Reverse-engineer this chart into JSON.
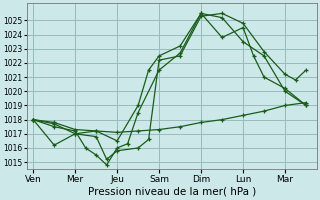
{
  "background_color": "#cce8e8",
  "grid_color": "#99bbbb",
  "line_color": "#1a5c1a",
  "ylim": [
    1014.5,
    1026.2
  ],
  "xlabel": "Pression niveau de la mer( hPa )",
  "yticks": [
    1015,
    1016,
    1017,
    1018,
    1019,
    1020,
    1021,
    1022,
    1023,
    1024,
    1025
  ],
  "day_labels": [
    "Ven",
    "Mer",
    "Jeu",
    "Sam",
    "Dim",
    "Lun",
    "Mar"
  ],
  "day_positions": [
    0,
    2,
    4,
    6,
    8,
    10,
    12
  ],
  "xlim": [
    -0.3,
    13.5
  ],
  "lines": [
    {
      "x": [
        0,
        1,
        2,
        3,
        4,
        5,
        6,
        7,
        8,
        9,
        10,
        11,
        12,
        13
      ],
      "y": [
        1018.0,
        1017.8,
        1017.3,
        1017.2,
        1017.1,
        1017.2,
        1017.3,
        1017.5,
        1017.8,
        1018.0,
        1018.3,
        1018.6,
        1019.0,
        1019.2
      ]
    },
    {
      "x": [
        0,
        1,
        2,
        2.5,
        3,
        3.5,
        4,
        4.5,
        5,
        6,
        7,
        8,
        9,
        10,
        11,
        12,
        13
      ],
      "y": [
        1018.0,
        1017.5,
        1017.2,
        1016.0,
        1015.5,
        1014.8,
        1016.0,
        1016.3,
        1018.5,
        1021.5,
        1022.7,
        1025.5,
        1025.2,
        1023.5,
        1022.5,
        1020.0,
        1019.0
      ]
    },
    {
      "x": [
        0,
        1,
        2,
        3,
        4,
        5,
        5.5,
        6,
        7,
        8,
        9,
        10,
        10.5,
        11,
        12,
        13
      ],
      "y": [
        1018.0,
        1016.2,
        1017.0,
        1017.2,
        1016.5,
        1019.0,
        1021.5,
        1022.5,
        1023.2,
        1025.5,
        1023.8,
        1024.5,
        1022.5,
        1021.0,
        1020.2,
        1019.0
      ]
    },
    {
      "x": [
        0,
        1,
        2,
        3,
        3.5,
        4,
        5,
        5.5,
        6,
        7,
        8,
        9,
        10,
        11,
        12,
        12.5,
        13
      ],
      "y": [
        1018.0,
        1017.7,
        1017.0,
        1016.8,
        1015.2,
        1015.8,
        1016.0,
        1016.6,
        1022.2,
        1022.5,
        1025.3,
        1025.5,
        1024.8,
        1022.8,
        1021.2,
        1020.8,
        1021.5
      ]
    }
  ]
}
